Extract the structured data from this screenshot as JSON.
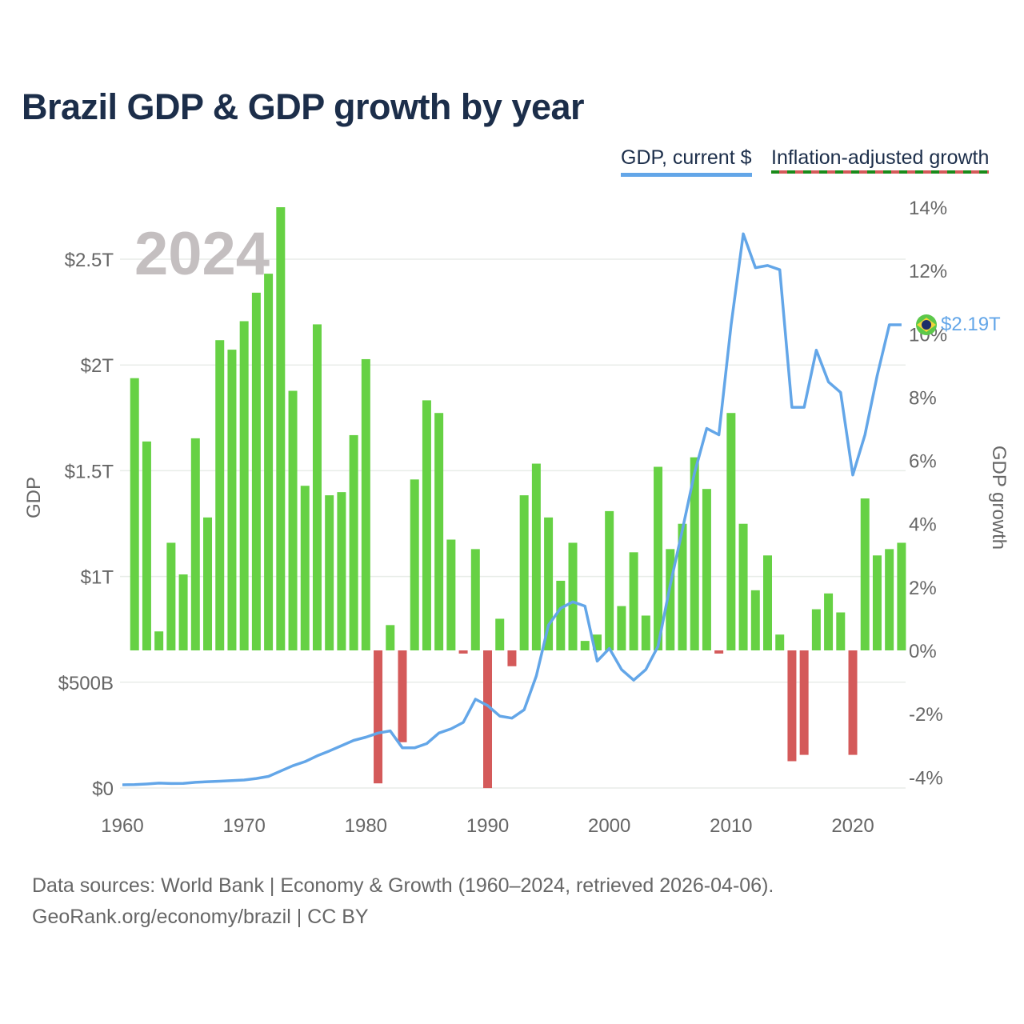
{
  "title": "Brazil GDP & GDP growth by year",
  "legend": {
    "gdp": "GDP, current $",
    "growth": "Inflation-adjusted growth"
  },
  "footer": {
    "line1": "Data sources: World Bank | Economy & Growth (1960–2024, retrieved 2026-04-06).",
    "line2": "GeoRank.org/economy/brazil | CC BY"
  },
  "year_overlay": "2024",
  "end_label": "$2.19T",
  "colors": {
    "line": "#63a6e8",
    "positive": "#66d144",
    "negative": "#d45a5a",
    "grid": "#e8ece8",
    "overlay": "#c4bfc0"
  },
  "chart_data": {
    "type": "bar+line",
    "title": "Brazil GDP & GDP growth by year",
    "xlabel": "",
    "ylabel_left": "GDP",
    "ylabel_right": "GDP growth",
    "xlim": [
      1960,
      2024
    ],
    "ylim_left": [
      0,
      2.75
    ],
    "ylim_right": [
      -4.4,
      14
    ],
    "x_ticks": [
      1960,
      1970,
      1980,
      1990,
      2000,
      2010,
      2020
    ],
    "x_tick_labels": [
      "1960",
      "1970",
      "1980",
      "1990",
      "2000",
      "2010",
      "2020"
    ],
    "left_ticks": [
      0,
      0.5,
      1,
      1.5,
      2,
      2.5
    ],
    "left_tick_labels": [
      "$0",
      "$500B",
      "$1T",
      "$1.5T",
      "$2T",
      "$2.5T"
    ],
    "right_ticks": [
      -4,
      -2,
      0,
      2,
      4,
      6,
      8,
      10,
      12,
      14
    ],
    "right_tick_labels": [
      "-4%",
      "-2%",
      "0%",
      "2%",
      "4%",
      "6%",
      "8%",
      "10%",
      "12%",
      "14%"
    ],
    "grid": true,
    "legend_position": "top-right",
    "series": [
      {
        "name": "Inflation-adjusted growth",
        "axis": "right",
        "unit": "%",
        "x": [
          1961,
          1962,
          1963,
          1964,
          1965,
          1966,
          1967,
          1968,
          1969,
          1970,
          1971,
          1972,
          1973,
          1974,
          1975,
          1976,
          1977,
          1978,
          1979,
          1980,
          1981,
          1982,
          1983,
          1984,
          1985,
          1986,
          1987,
          1988,
          1989,
          1990,
          1991,
          1992,
          1993,
          1994,
          1995,
          1996,
          1997,
          1998,
          1999,
          2000,
          2001,
          2002,
          2003,
          2004,
          2005,
          2006,
          2007,
          2008,
          2009,
          2010,
          2011,
          2012,
          2013,
          2014,
          2015,
          2016,
          2017,
          2018,
          2019,
          2020,
          2021,
          2022,
          2023,
          2024
        ],
        "values": [
          8.6,
          6.6,
          0.6,
          3.4,
          2.4,
          6.7,
          4.2,
          9.8,
          9.5,
          10.4,
          11.3,
          11.9,
          14.0,
          8.2,
          5.2,
          10.3,
          4.9,
          5.0,
          6.8,
          9.2,
          -4.2,
          0.8,
          -2.9,
          5.4,
          7.9,
          7.5,
          3.5,
          -0.1,
          3.2,
          -4.35,
          1.0,
          -0.5,
          4.9,
          5.9,
          4.2,
          2.2,
          3.4,
          0.3,
          0.5,
          4.4,
          1.4,
          3.1,
          1.1,
          5.8,
          3.2,
          4.0,
          6.1,
          5.1,
          -0.1,
          7.5,
          4.0,
          1.9,
          3.0,
          0.5,
          -3.5,
          -3.3,
          1.3,
          1.8,
          1.2,
          -3.3,
          4.8,
          3.0,
          3.2,
          3.4
        ]
      },
      {
        "name": "GDP, current $",
        "axis": "left",
        "unit": "trillion USD",
        "x": [
          1960,
          1961,
          1962,
          1963,
          1964,
          1965,
          1966,
          1967,
          1968,
          1969,
          1970,
          1971,
          1972,
          1973,
          1974,
          1975,
          1976,
          1977,
          1978,
          1979,
          1980,
          1981,
          1982,
          1983,
          1984,
          1985,
          1986,
          1987,
          1988,
          1989,
          1990,
          1991,
          1992,
          1993,
          1994,
          1995,
          1996,
          1997,
          1998,
          1999,
          2000,
          2001,
          2002,
          2003,
          2004,
          2005,
          2006,
          2007,
          2008,
          2009,
          2010,
          2011,
          2012,
          2013,
          2014,
          2015,
          2016,
          2017,
          2018,
          2019,
          2020,
          2021,
          2022,
          2023,
          2024
        ],
        "values": [
          0.015,
          0.016,
          0.019,
          0.023,
          0.021,
          0.022,
          0.027,
          0.03,
          0.032,
          0.035,
          0.038,
          0.045,
          0.055,
          0.08,
          0.105,
          0.125,
          0.152,
          0.175,
          0.2,
          0.225,
          0.24,
          0.26,
          0.27,
          0.19,
          0.19,
          0.21,
          0.26,
          0.28,
          0.31,
          0.42,
          0.39,
          0.34,
          0.33,
          0.37,
          0.53,
          0.77,
          0.85,
          0.88,
          0.86,
          0.6,
          0.66,
          0.56,
          0.51,
          0.56,
          0.67,
          0.96,
          1.22,
          1.49,
          1.7,
          1.67,
          2.19,
          2.62,
          2.46,
          2.47,
          2.45,
          1.8,
          1.8,
          2.07,
          1.92,
          1.87,
          1.48,
          1.67,
          1.95,
          2.19,
          2.19
        ]
      }
    ]
  }
}
